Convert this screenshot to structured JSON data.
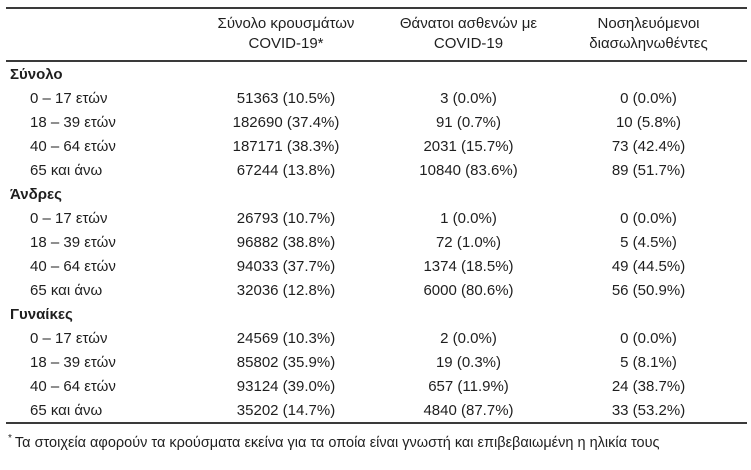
{
  "colors": {
    "text": "#1f1f1f",
    "rule": "#3a3a3a",
    "background": "#ffffff"
  },
  "header": {
    "columns": [
      {
        "line1": "Σύνολο κρουσμάτων",
        "line2": "COVID-19*"
      },
      {
        "line1": "Θάνατοι ασθενών με",
        "line2": "COVID-19"
      },
      {
        "line1": "Νοσηλευόμενοι",
        "line2": "διασωληνωθέντες"
      }
    ]
  },
  "groups": [
    {
      "name": "Σύνολο",
      "rows": [
        {
          "age": "0 – 17 ετών",
          "cases": "51363 (10.5%)",
          "deaths": "3 (0.0%)",
          "intubated": "0 (0.0%)"
        },
        {
          "age": "18 – 39 ετών",
          "cases": "182690 (37.4%)",
          "deaths": "91 (0.7%)",
          "intubated": "10 (5.8%)"
        },
        {
          "age": "40 – 64 ετών",
          "cases": "187171 (38.3%)",
          "deaths": "2031 (15.7%)",
          "intubated": "73 (42.4%)"
        },
        {
          "age": "65 και άνω",
          "cases": "67244 (13.8%)",
          "deaths": "10840 (83.6%)",
          "intubated": "89 (51.7%)"
        }
      ]
    },
    {
      "name": "Άνδρες",
      "rows": [
        {
          "age": "0 – 17 ετών",
          "cases": "26793 (10.7%)",
          "deaths": "1 (0.0%)",
          "intubated": "0 (0.0%)"
        },
        {
          "age": "18 – 39 ετών",
          "cases": "96882 (38.8%)",
          "deaths": "72 (1.0%)",
          "intubated": "5 (4.5%)"
        },
        {
          "age": "40 – 64 ετών",
          "cases": "94033 (37.7%)",
          "deaths": "1374 (18.5%)",
          "intubated": "49 (44.5%)"
        },
        {
          "age": "65 και άνω",
          "cases": "32036 (12.8%)",
          "deaths": "6000 (80.6%)",
          "intubated": "56 (50.9%)"
        }
      ]
    },
    {
      "name": "Γυναίκες",
      "rows": [
        {
          "age": "0 – 17 ετών",
          "cases": "24569 (10.3%)",
          "deaths": "2 (0.0%)",
          "intubated": "0 (0.0%)"
        },
        {
          "age": "18 – 39 ετών",
          "cases": "85802 (35.9%)",
          "deaths": "19 (0.3%)",
          "intubated": "5 (8.1%)"
        },
        {
          "age": "40 – 64 ετών",
          "cases": "93124 (39.0%)",
          "deaths": "657 (11.9%)",
          "intubated": "24 (38.7%)"
        },
        {
          "age": "65 και άνω",
          "cases": "35202 (14.7%)",
          "deaths": "4840 (87.7%)",
          "intubated": "33 (53.2%)"
        }
      ]
    }
  ],
  "footnote": {
    "marker": "*",
    "text": "Τα στοιχεία αφορούν τα κρούσματα εκείνα για τα οποία είναι γνωστή και επιβεβαιωμένη η ηλικία τους"
  }
}
